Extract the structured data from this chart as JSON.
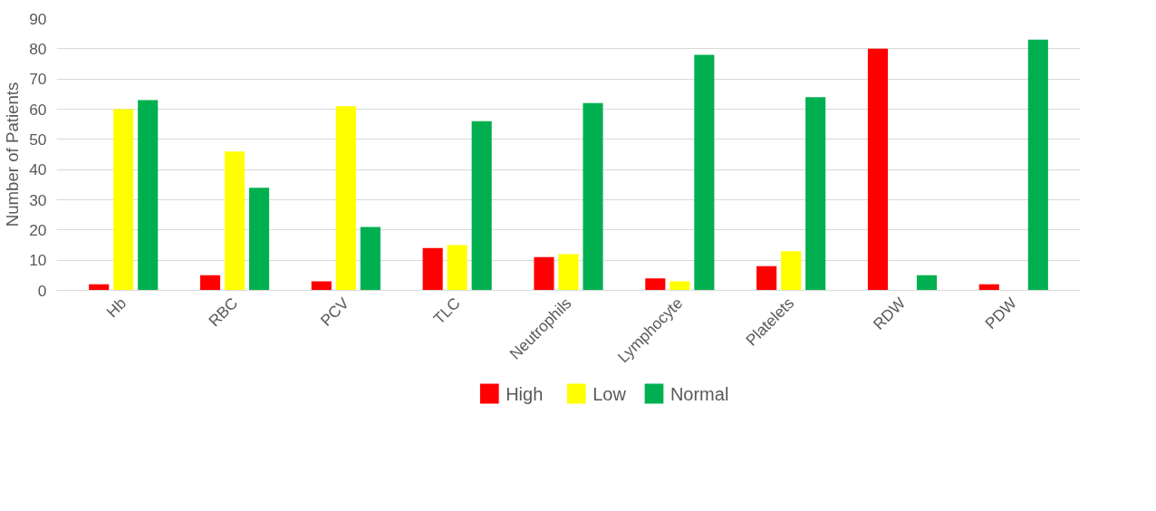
{
  "chart_data": {
    "type": "bar",
    "ylabel": "Number of Patients",
    "categories": [
      "Hb",
      "RBC",
      "PCV",
      "TLC",
      "Neutrophils",
      "Lymphocyte",
      "Platelets",
      "RDW",
      "PDW"
    ],
    "series": [
      {
        "name": "High",
        "color": "#ff0000",
        "values": [
          2,
          5,
          3,
          14,
          11,
          4,
          8,
          80,
          2
        ]
      },
      {
        "name": "Low",
        "color": "#ffff00",
        "values": [
          60,
          46,
          61,
          15,
          12,
          3,
          13,
          0,
          0
        ]
      },
      {
        "name": "Normal",
        "color": "#00b050",
        "values": [
          63,
          34,
          21,
          56,
          62,
          78,
          64,
          5,
          83
        ]
      }
    ],
    "ylim": [
      0,
      90
    ],
    "yticks": [
      0,
      10,
      20,
      30,
      40,
      50,
      60,
      70,
      80,
      90
    ],
    "grid": "y",
    "legend": "bottom"
  }
}
